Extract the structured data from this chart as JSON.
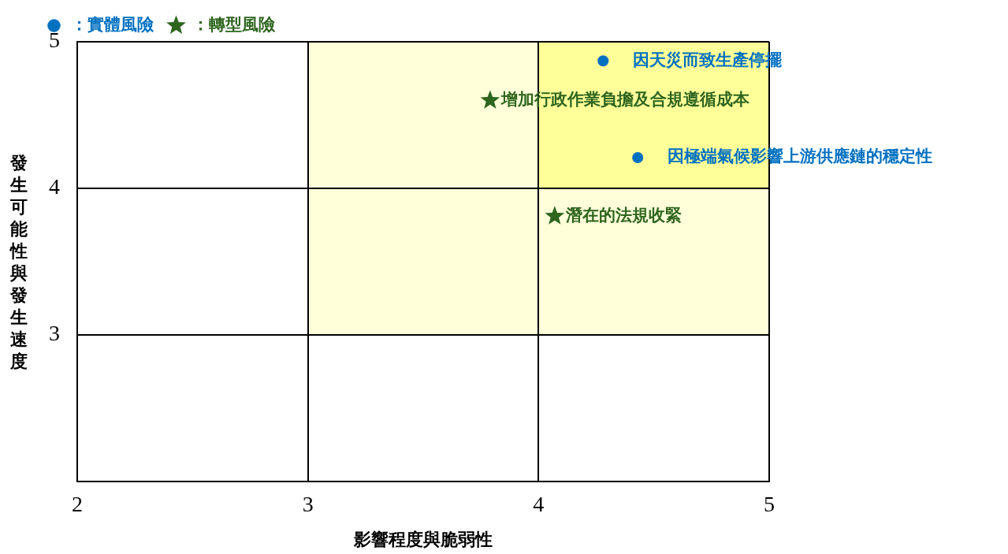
{
  "chart_data": {
    "type": "scatter",
    "xlabel": "影響程度與脆弱性",
    "ylabel": "發生可能性與發生速度",
    "xlim": [
      2,
      5
    ],
    "ylim": [
      2,
      5
    ],
    "xticks": [
      2,
      3,
      4,
      5
    ],
    "yticks": [
      {
        "value": 2,
        "label": null
      },
      3,
      4,
      5
    ],
    "grid": true,
    "legend": "top left",
    "series": [
      {
        "name": "：實體風險",
        "color": "#0070c0",
        "marker": "circle",
        "x": [
          4.28,
          4.43
        ],
        "values": [
          4.87,
          4.21
        ],
        "value_labels": [
          "因天災而致生產停擺",
          "因極端氣候影響上游供應鏈的穩定性"
        ]
      },
      {
        "name": "：轉型風險",
        "color": "#2e651f",
        "marker": "star",
        "x": [
          3.79,
          4.07
        ],
        "values": [
          4.6,
          3.81
        ],
        "value_labels": [
          "增加行政作業負擔及合規遵循成本",
          "潛在的法規收緊"
        ]
      }
    ]
  }
}
